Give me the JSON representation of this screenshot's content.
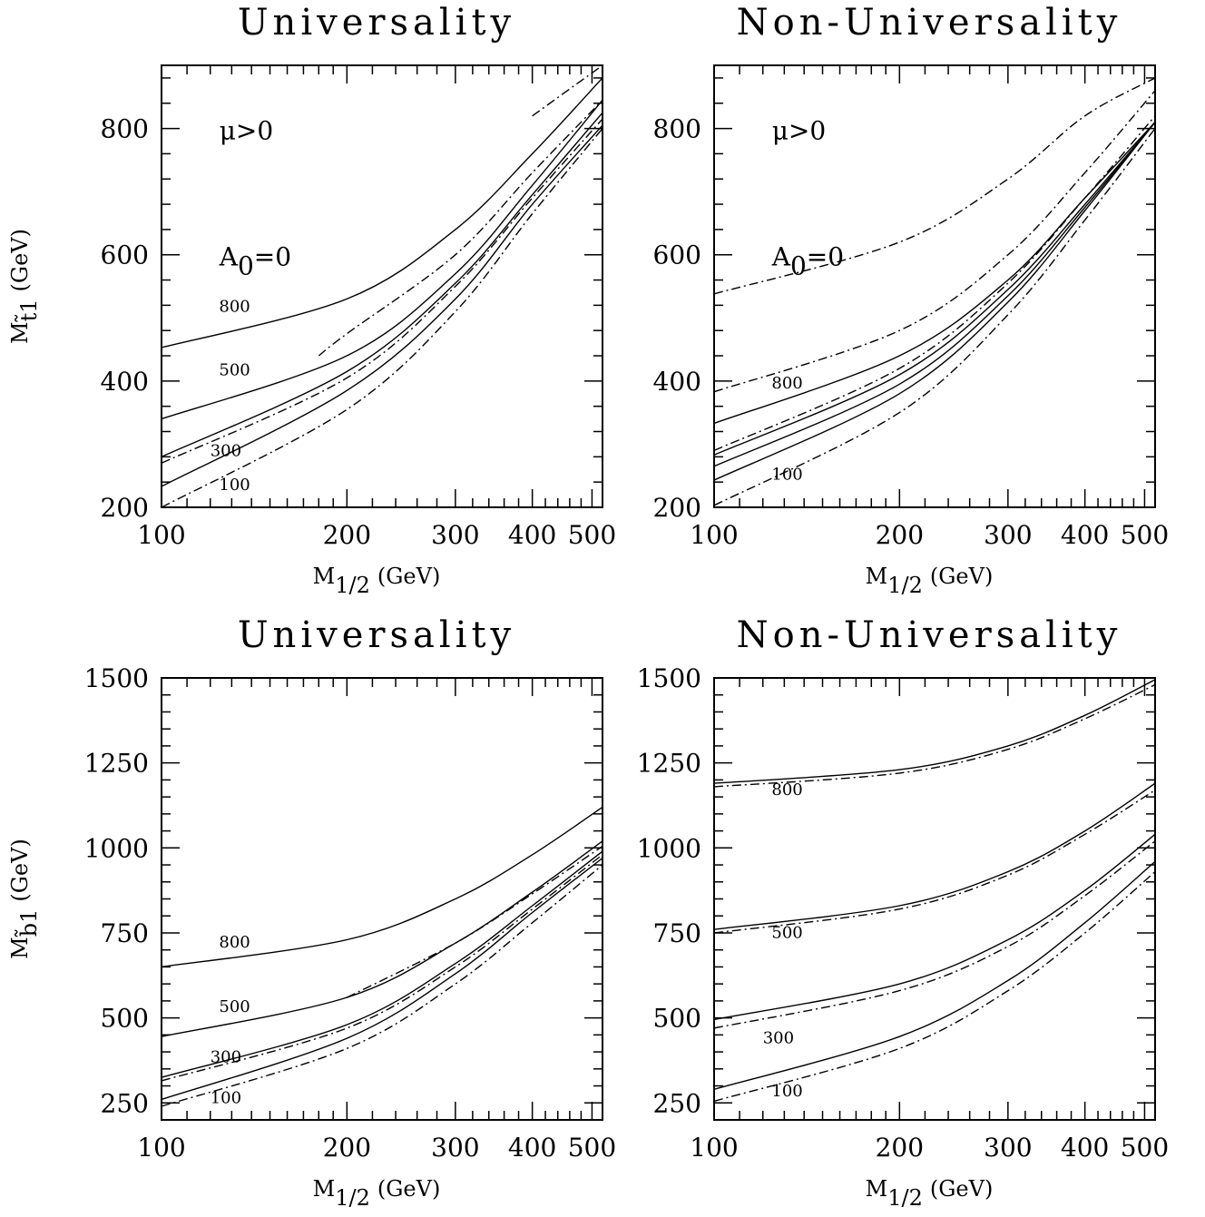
{
  "chart_data": [
    {
      "type": "line",
      "title": "Universality",
      "xlabel": "M_{1/2} (GeV)",
      "ylabel": "M_{t̃1} (GeV)",
      "xscale": "log",
      "xlim": [
        100,
        520
      ],
      "ylim": [
        200,
        900
      ],
      "xticks": [
        {
          "v": 100,
          "t": "100"
        },
        {
          "v": 200,
          "t": "200"
        },
        {
          "v": 300,
          "t": "300"
        },
        {
          "v": 400,
          "t": "400"
        },
        {
          "v": 500,
          "t": "500"
        }
      ],
      "yticks": [
        {
          "v": 200,
          "t": "200"
        },
        {
          "v": 400,
          "t": "400"
        },
        {
          "v": 600,
          "t": "600"
        },
        {
          "v": 800,
          "t": "800"
        }
      ],
      "annotations": [
        {
          "t": "μ>0",
          "x": 120,
          "y": 800
        },
        {
          "t": "A",
          "sub": "0",
          "rest": "=0",
          "x": 120,
          "y": 600
        }
      ],
      "series": [
        {
          "label": "800",
          "style": "solid",
          "x": [
            100,
            200,
            300,
            400,
            520
          ],
          "y": [
            453,
            530,
            640,
            760,
            880
          ]
        },
        {
          "label": "500",
          "style": "solid",
          "x": [
            100,
            200,
            300,
            400,
            520
          ],
          "y": [
            340,
            440,
            570,
            710,
            845
          ]
        },
        {
          "label": "300",
          "style": "solid",
          "x": [
            100,
            200,
            300,
            400,
            520
          ],
          "y": [
            280,
            415,
            555,
            695,
            825
          ]
        },
        {
          "label": "100",
          "style": "solid",
          "x": [
            100,
            200,
            300,
            400,
            520
          ],
          "y": [
            233,
            385,
            530,
            680,
            805
          ]
        },
        {
          "label": "",
          "style": "dashdot",
          "x": [
            180,
            200,
            300,
            400,
            520
          ],
          "y": [
            440,
            475,
            600,
            730,
            845
          ]
        },
        {
          "label": "",
          "style": "dashdot",
          "x": [
            100,
            200,
            300,
            400,
            520
          ],
          "y": [
            270,
            405,
            550,
            690,
            815
          ]
        },
        {
          "label": "",
          "style": "dashdot",
          "x": [
            100,
            200,
            300,
            400,
            520
          ],
          "y": [
            200,
            355,
            510,
            665,
            800
          ]
        },
        {
          "label": "",
          "style": "dashdot",
          "x": [
            400,
            520
          ],
          "y": [
            820,
            900
          ]
        }
      ],
      "curve_labels": [
        {
          "t": "800",
          "x": 124,
          "y": 510
        },
        {
          "t": "500",
          "x": 124,
          "y": 409
        },
        {
          "t": "300",
          "x": 120,
          "y": 281
        },
        {
          "t": "100",
          "x": 124,
          "y": 227
        }
      ]
    },
    {
      "type": "line",
      "title": "Non-Universality",
      "xlabel": "M_{1/2} (GeV)",
      "ylabel": "",
      "xscale": "log",
      "xlim": [
        100,
        520
      ],
      "ylim": [
        200,
        900
      ],
      "xticks": [
        {
          "v": 100,
          "t": "100"
        },
        {
          "v": 200,
          "t": "200"
        },
        {
          "v": 300,
          "t": "300"
        },
        {
          "v": 400,
          "t": "400"
        },
        {
          "v": 500,
          "t": "500"
        }
      ],
      "yticks": [
        {
          "v": 200,
          "t": "200"
        },
        {
          "v": 400,
          "t": "400"
        },
        {
          "v": 600,
          "t": "600"
        },
        {
          "v": 800,
          "t": "800"
        }
      ],
      "annotations": [
        {
          "t": "μ>0",
          "x": 120,
          "y": 800
        },
        {
          "t": "A",
          "sub": "0",
          "rest": "=0",
          "x": 120,
          "y": 600
        }
      ],
      "series": [
        {
          "label": "800",
          "style": "solid",
          "x": [
            100,
            200,
            300,
            400,
            520
          ],
          "y": [
            333,
            440,
            560,
            690,
            810
          ]
        },
        {
          "label": "",
          "style": "solid",
          "x": [
            100,
            200,
            300,
            400,
            520
          ],
          "y": [
            283,
            410,
            545,
            680,
            810
          ]
        },
        {
          "label": "",
          "style": "solid",
          "x": [
            100,
            200,
            300,
            400,
            520
          ],
          "y": [
            265,
            395,
            535,
            675,
            810
          ]
        },
        {
          "label": "100",
          "style": "solid",
          "x": [
            100,
            200,
            300,
            400,
            520
          ],
          "y": [
            243,
            380,
            525,
            670,
            810
          ]
        },
        {
          "label": "",
          "style": "dashdot",
          "x": [
            100,
            200,
            300,
            400,
            520
          ],
          "y": [
            538,
            620,
            720,
            820,
            880
          ]
        },
        {
          "label": "",
          "style": "dashdot",
          "x": [
            100,
            200,
            300,
            400,
            520
          ],
          "y": [
            383,
            480,
            600,
            730,
            860
          ]
        },
        {
          "label": "",
          "style": "dashdot",
          "x": [
            100,
            200,
            300,
            400,
            520
          ],
          "y": [
            290,
            420,
            555,
            690,
            820
          ]
        },
        {
          "label": "",
          "style": "dashdot",
          "x": [
            100,
            200,
            300,
            400,
            520
          ],
          "y": [
            203,
            350,
            505,
            655,
            800
          ]
        }
      ],
      "curve_labels": [
        {
          "t": "800",
          "x": 124,
          "y": 388
        },
        {
          "t": "100",
          "x": 124,
          "y": 244
        }
      ]
    },
    {
      "type": "line",
      "title": "Universality",
      "xlabel": "M_{1/2} (GeV)",
      "ylabel": "M_{b̃1} (GeV)",
      "xscale": "log",
      "xlim": [
        100,
        520
      ],
      "ylim": [
        200,
        1500
      ],
      "xticks": [
        {
          "v": 100,
          "t": "100"
        },
        {
          "v": 200,
          "t": "200"
        },
        {
          "v": 300,
          "t": "300"
        },
        {
          "v": 400,
          "t": "400"
        },
        {
          "v": 500,
          "t": "500"
        }
      ],
      "yticks": [
        {
          "v": 250,
          "t": "250"
        },
        {
          "v": 500,
          "t": "500"
        },
        {
          "v": 750,
          "t": "750"
        },
        {
          "v": 1000,
          "t": "1000"
        },
        {
          "v": 1250,
          "t": "1250"
        },
        {
          "v": 1500,
          "t": "1500"
        }
      ],
      "annotations": [],
      "series": [
        {
          "label": "800",
          "style": "solid",
          "x": [
            100,
            200,
            300,
            400,
            520
          ],
          "y": [
            650,
            730,
            850,
            980,
            1120
          ]
        },
        {
          "label": "500",
          "style": "solid",
          "x": [
            100,
            200,
            300,
            400,
            520
          ],
          "y": [
            445,
            560,
            720,
            870,
            1020
          ]
        },
        {
          "label": "300",
          "style": "solid",
          "x": [
            100,
            200,
            300,
            400,
            520
          ],
          "y": [
            325,
            480,
            660,
            830,
            990
          ]
        },
        {
          "label": "100",
          "style": "solid",
          "x": [
            100,
            200,
            300,
            400,
            520
          ],
          "y": [
            260,
            440,
            630,
            810,
            970
          ]
        },
        {
          "label": "",
          "style": "dashdot",
          "x": [
            200,
            300,
            400,
            520
          ],
          "y": [
            560,
            720,
            865,
            1005
          ]
        },
        {
          "label": "",
          "style": "dashdot",
          "x": [
            100,
            200,
            300,
            400,
            520
          ],
          "y": [
            315,
            470,
            650,
            820,
            980
          ]
        },
        {
          "label": "",
          "style": "dashdot",
          "x": [
            100,
            200,
            300,
            400,
            520
          ],
          "y": [
            240,
            410,
            600,
            780,
            950
          ]
        }
      ],
      "curve_labels": [
        {
          "t": "800",
          "x": 124,
          "y": 707
        },
        {
          "t": "500",
          "x": 124,
          "y": 518
        },
        {
          "t": "300",
          "x": 120,
          "y": 370
        },
        {
          "t": "100",
          "x": 120,
          "y": 250
        }
      ]
    },
    {
      "type": "line",
      "title": "Non-Universality",
      "xlabel": "M_{1/2} (GeV)",
      "ylabel": "",
      "xscale": "log",
      "xlim": [
        100,
        520
      ],
      "ylim": [
        200,
        1500
      ],
      "xticks": [
        {
          "v": 100,
          "t": "100"
        },
        {
          "v": 200,
          "t": "200"
        },
        {
          "v": 300,
          "t": "300"
        },
        {
          "v": 400,
          "t": "400"
        },
        {
          "v": 500,
          "t": "500"
        }
      ],
      "yticks": [
        {
          "v": 250,
          "t": "250"
        },
        {
          "v": 500,
          "t": "500"
        },
        {
          "v": 750,
          "t": "750"
        },
        {
          "v": 1000,
          "t": "1000"
        },
        {
          "v": 1250,
          "t": "1250"
        },
        {
          "v": 1500,
          "t": "1500"
        }
      ],
      "annotations": [],
      "series": [
        {
          "label": "800",
          "style": "solid",
          "x": [
            100,
            200,
            300,
            400,
            520
          ],
          "y": [
            1190,
            1230,
            1300,
            1390,
            1495
          ]
        },
        {
          "label": "500",
          "style": "solid",
          "x": [
            100,
            200,
            300,
            400,
            520
          ],
          "y": [
            760,
            830,
            930,
            1050,
            1190
          ]
        },
        {
          "label": "300",
          "style": "solid",
          "x": [
            100,
            200,
            300,
            400,
            520
          ],
          "y": [
            495,
            600,
            730,
            875,
            1040
          ]
        },
        {
          "label": "100",
          "style": "solid",
          "x": [
            100,
            200,
            300,
            400,
            520
          ],
          "y": [
            290,
            445,
            610,
            780,
            960
          ]
        },
        {
          "label": "",
          "style": "dashdot",
          "x": [
            100,
            200,
            300,
            400,
            520
          ],
          "y": [
            1180,
            1220,
            1290,
            1380,
            1480
          ]
        },
        {
          "label": "",
          "style": "dashdot",
          "x": [
            100,
            200,
            300,
            400,
            520
          ],
          "y": [
            750,
            820,
            920,
            1040,
            1170
          ]
        },
        {
          "label": "",
          "style": "dashdot",
          "x": [
            100,
            200,
            300,
            400,
            520
          ],
          "y": [
            470,
            580,
            710,
            860,
            1020
          ]
        },
        {
          "label": "",
          "style": "dashdot",
          "x": [
            100,
            200,
            300,
            400,
            520
          ],
          "y": [
            255,
            410,
            580,
            750,
            930
          ]
        }
      ],
      "curve_labels": [
        {
          "t": "800",
          "x": 124,
          "y": 1155
        },
        {
          "t": "500",
          "x": 124,
          "y": 735
        },
        {
          "t": "300",
          "x": 120,
          "y": 425
        },
        {
          "t": "100",
          "x": 124,
          "y": 270
        }
      ]
    }
  ]
}
